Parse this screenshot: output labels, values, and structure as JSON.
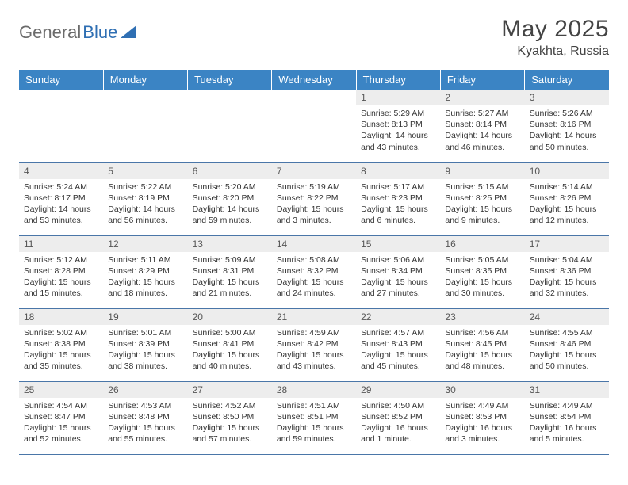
{
  "brand": {
    "part1": "General",
    "part2": "Blue"
  },
  "title": "May 2025",
  "location": "Kyakhta, Russia",
  "colors": {
    "header_bg": "#3b84c4",
    "header_text": "#ffffff",
    "daynum_bg": "#ededed",
    "daynum_text": "#555555",
    "body_text": "#333333",
    "rule": "#4a76a8",
    "brand_gray": "#6b6b6b",
    "brand_blue": "#2f6fb3"
  },
  "weekdays": [
    "Sunday",
    "Monday",
    "Tuesday",
    "Wednesday",
    "Thursday",
    "Friday",
    "Saturday"
  ],
  "weeks": [
    [
      null,
      null,
      null,
      null,
      {
        "n": "1",
        "sr": "5:29 AM",
        "ss": "8:13 PM",
        "dl": "14 hours and 43 minutes."
      },
      {
        "n": "2",
        "sr": "5:27 AM",
        "ss": "8:14 PM",
        "dl": "14 hours and 46 minutes."
      },
      {
        "n": "3",
        "sr": "5:26 AM",
        "ss": "8:16 PM",
        "dl": "14 hours and 50 minutes."
      }
    ],
    [
      {
        "n": "4",
        "sr": "5:24 AM",
        "ss": "8:17 PM",
        "dl": "14 hours and 53 minutes."
      },
      {
        "n": "5",
        "sr": "5:22 AM",
        "ss": "8:19 PM",
        "dl": "14 hours and 56 minutes."
      },
      {
        "n": "6",
        "sr": "5:20 AM",
        "ss": "8:20 PM",
        "dl": "14 hours and 59 minutes."
      },
      {
        "n": "7",
        "sr": "5:19 AM",
        "ss": "8:22 PM",
        "dl": "15 hours and 3 minutes."
      },
      {
        "n": "8",
        "sr": "5:17 AM",
        "ss": "8:23 PM",
        "dl": "15 hours and 6 minutes."
      },
      {
        "n": "9",
        "sr": "5:15 AM",
        "ss": "8:25 PM",
        "dl": "15 hours and 9 minutes."
      },
      {
        "n": "10",
        "sr": "5:14 AM",
        "ss": "8:26 PM",
        "dl": "15 hours and 12 minutes."
      }
    ],
    [
      {
        "n": "11",
        "sr": "5:12 AM",
        "ss": "8:28 PM",
        "dl": "15 hours and 15 minutes."
      },
      {
        "n": "12",
        "sr": "5:11 AM",
        "ss": "8:29 PM",
        "dl": "15 hours and 18 minutes."
      },
      {
        "n": "13",
        "sr": "5:09 AM",
        "ss": "8:31 PM",
        "dl": "15 hours and 21 minutes."
      },
      {
        "n": "14",
        "sr": "5:08 AM",
        "ss": "8:32 PM",
        "dl": "15 hours and 24 minutes."
      },
      {
        "n": "15",
        "sr": "5:06 AM",
        "ss": "8:34 PM",
        "dl": "15 hours and 27 minutes."
      },
      {
        "n": "16",
        "sr": "5:05 AM",
        "ss": "8:35 PM",
        "dl": "15 hours and 30 minutes."
      },
      {
        "n": "17",
        "sr": "5:04 AM",
        "ss": "8:36 PM",
        "dl": "15 hours and 32 minutes."
      }
    ],
    [
      {
        "n": "18",
        "sr": "5:02 AM",
        "ss": "8:38 PM",
        "dl": "15 hours and 35 minutes."
      },
      {
        "n": "19",
        "sr": "5:01 AM",
        "ss": "8:39 PM",
        "dl": "15 hours and 38 minutes."
      },
      {
        "n": "20",
        "sr": "5:00 AM",
        "ss": "8:41 PM",
        "dl": "15 hours and 40 minutes."
      },
      {
        "n": "21",
        "sr": "4:59 AM",
        "ss": "8:42 PM",
        "dl": "15 hours and 43 minutes."
      },
      {
        "n": "22",
        "sr": "4:57 AM",
        "ss": "8:43 PM",
        "dl": "15 hours and 45 minutes."
      },
      {
        "n": "23",
        "sr": "4:56 AM",
        "ss": "8:45 PM",
        "dl": "15 hours and 48 minutes."
      },
      {
        "n": "24",
        "sr": "4:55 AM",
        "ss": "8:46 PM",
        "dl": "15 hours and 50 minutes."
      }
    ],
    [
      {
        "n": "25",
        "sr": "4:54 AM",
        "ss": "8:47 PM",
        "dl": "15 hours and 52 minutes."
      },
      {
        "n": "26",
        "sr": "4:53 AM",
        "ss": "8:48 PM",
        "dl": "15 hours and 55 minutes."
      },
      {
        "n": "27",
        "sr": "4:52 AM",
        "ss": "8:50 PM",
        "dl": "15 hours and 57 minutes."
      },
      {
        "n": "28",
        "sr": "4:51 AM",
        "ss": "8:51 PM",
        "dl": "15 hours and 59 minutes."
      },
      {
        "n": "29",
        "sr": "4:50 AM",
        "ss": "8:52 PM",
        "dl": "16 hours and 1 minute."
      },
      {
        "n": "30",
        "sr": "4:49 AM",
        "ss": "8:53 PM",
        "dl": "16 hours and 3 minutes."
      },
      {
        "n": "31",
        "sr": "4:49 AM",
        "ss": "8:54 PM",
        "dl": "16 hours and 5 minutes."
      }
    ]
  ],
  "labels": {
    "sunrise": "Sunrise:",
    "sunset": "Sunset:",
    "daylight": "Daylight:"
  }
}
